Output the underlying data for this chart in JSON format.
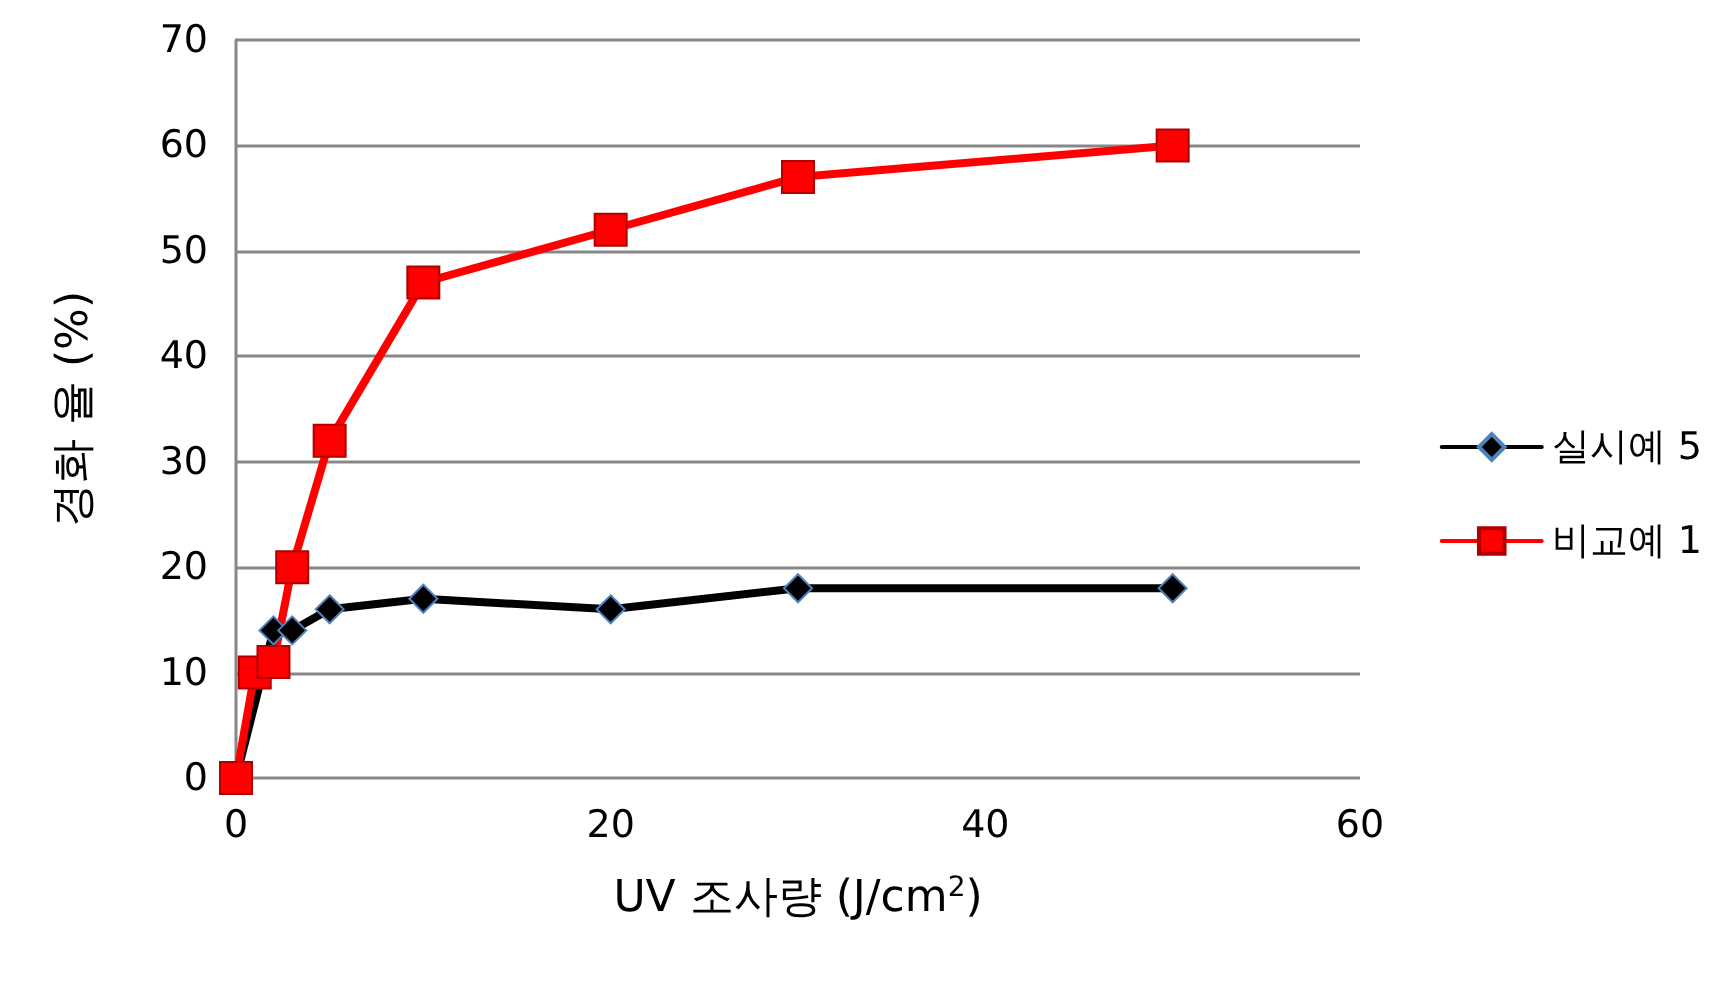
{
  "chart_data": {
    "type": "line",
    "xlabel": "UV 조사량 (J/cm$^{2}$)",
    "ylabel": "경화 율 (%)",
    "xlim": [
      0,
      60
    ],
    "xticks": [
      0,
      20,
      40,
      60
    ],
    "ylim": [
      0,
      70
    ],
    "yticks": [
      0,
      10,
      20,
      30,
      40,
      50,
      60,
      70
    ],
    "grid": "y",
    "legend": "right",
    "line_style": "solid",
    "series": [
      {
        "name": "실시예 5",
        "color": "#000000",
        "marker": "diamond",
        "x": [
          0,
          2,
          3,
          5,
          10,
          20,
          30,
          50
        ],
        "values": [
          0,
          14,
          14,
          16,
          17,
          16,
          18,
          18
        ]
      },
      {
        "name": "비교예 1",
        "color": "#ff0000",
        "marker": "square",
        "x": [
          0,
          1,
          2,
          3,
          5,
          10,
          20,
          30,
          50
        ],
        "values": [
          0,
          10,
          11,
          20,
          32,
          47,
          52,
          57,
          60
        ]
      }
    ]
  }
}
